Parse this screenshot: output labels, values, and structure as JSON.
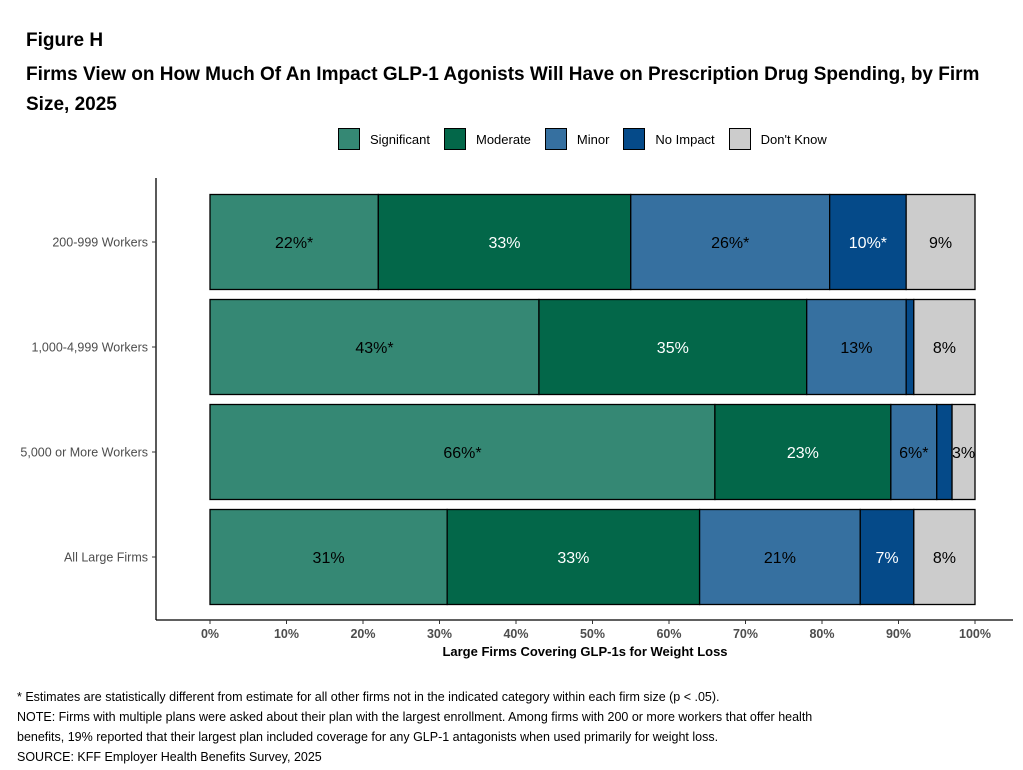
{
  "figure_label": "Figure H",
  "title": "Firms View on How Much Of An Impact GLP-1 Agonists Will Have on Prescription Drug Spending, by Firm Size, 2025",
  "colors": {
    "Significant": "#358874",
    "Moderate": "#036749",
    "Minor": "#3670a0",
    "No Impact": "#054a89",
    "Don't Know": "#cccccc"
  },
  "label_colors": {
    "Significant": "#000000",
    "Moderate": "#ffffff",
    "Minor": "#000000",
    "No Impact": "#ffffff",
    "Don't Know": "#000000"
  },
  "chart_data": {
    "type": "bar",
    "orientation": "horizontal",
    "stacked": true,
    "categories": [
      "200-999 Workers",
      "1,000-4,999 Workers",
      "5,000 or More Workers",
      "All Large Firms"
    ],
    "series": [
      {
        "name": "Significant",
        "values": [
          22,
          43,
          66,
          31
        ],
        "labels": [
          "22%*",
          "43%*",
          "66%*",
          "31%"
        ]
      },
      {
        "name": "Moderate",
        "values": [
          33,
          35,
          23,
          33
        ],
        "labels": [
          "33%",
          "35%",
          "23%",
          "33%"
        ]
      },
      {
        "name": "Minor",
        "values": [
          26,
          13,
          6,
          21
        ],
        "labels": [
          "26%*",
          "13%",
          "6%*",
          "21%"
        ]
      },
      {
        "name": "No Impact",
        "values": [
          10,
          1,
          2,
          7
        ],
        "labels": [
          "10%*",
          "",
          "",
          "7%"
        ]
      },
      {
        "name": "Don't Know",
        "values": [
          9,
          8,
          3,
          8
        ],
        "labels": [
          "9%",
          "8%",
          "3%",
          "8%"
        ]
      }
    ],
    "xlabel": "Large Firms Covering GLP-1s for Weight Loss",
    "xlim": [
      0,
      100
    ],
    "xticks": [
      "0%",
      "10%",
      "20%",
      "30%",
      "40%",
      "50%",
      "60%",
      "70%",
      "80%",
      "90%",
      "100%"
    ],
    "legend_position": "top",
    "grid": false
  },
  "notes": [
    "* Estimates are statistically different from estimate for all other firms not in the indicated category within each firm size (p < .05).",
    "NOTE: Firms with multiple plans were asked about their plan with the largest enrollment.  Among firms with 200 or more workers that offer health",
    "benefits, 19% reported that their largest plan included coverage for any GLP-1 antagonists when used primarily for weight loss.",
    "SOURCE: KFF Employer Health Benefits Survey, 2025"
  ]
}
